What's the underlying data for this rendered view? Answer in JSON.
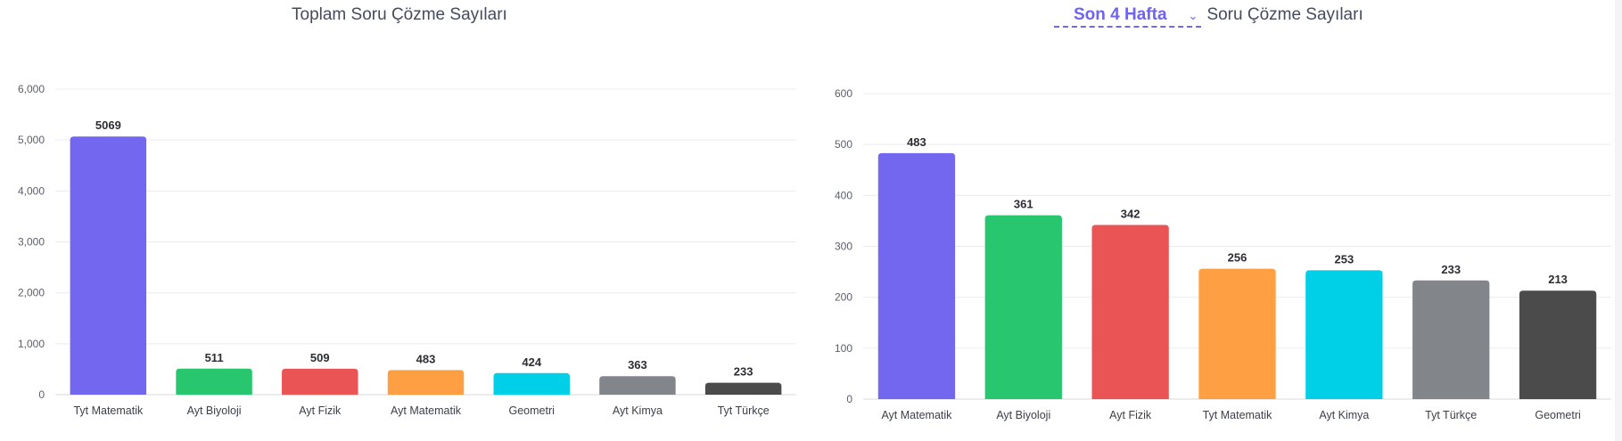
{
  "left_title": "Toplam Soru Çözme Sayıları",
  "right_selector": {
    "label": "Son 4 Hafta"
  },
  "right_title": "Soru Çözme Sayıları",
  "chart_data": [
    {
      "type": "bar",
      "title": "Toplam Soru Çözme Sayıları",
      "categories": [
        "Tyt Matematik",
        "Ayt Biyoloji",
        "Ayt Fizik",
        "Ayt Matematik",
        "Geometri",
        "Ayt Kimya",
        "Tyt Türkçe"
      ],
      "values": [
        5069,
        511,
        509,
        483,
        424,
        363,
        233
      ],
      "colors": [
        "#7367f0",
        "#28c76f",
        "#ea5455",
        "#ff9f43",
        "#00cfe8",
        "#82868b",
        "#4b4b4b"
      ],
      "ylim": [
        0,
        6000
      ],
      "yticks": [
        0,
        1000,
        2000,
        3000,
        4000,
        5000,
        6000
      ],
      "ytick_labels": [
        "0",
        "1,000",
        "2,000",
        "3,000",
        "4,000",
        "5,000",
        "6,000"
      ],
      "data_labels": true,
      "grid": true
    },
    {
      "type": "bar",
      "title": "Soru Çözme Sayıları",
      "categories": [
        "Ayt Matematik",
        "Ayt Biyoloji",
        "Ayt Fizik",
        "Tyt Matematik",
        "Ayt Kimya",
        "Tyt Türkçe",
        "Geometri"
      ],
      "values": [
        483,
        361,
        342,
        256,
        253,
        233,
        213
      ],
      "colors": [
        "#7367f0",
        "#28c76f",
        "#ea5455",
        "#ff9f43",
        "#00cfe8",
        "#82868b",
        "#4b4b4b"
      ],
      "ylim": [
        0,
        600
      ],
      "yticks": [
        0,
        100,
        200,
        300,
        400,
        500,
        600
      ],
      "ytick_labels": [
        "0",
        "100",
        "200",
        "300",
        "400",
        "500",
        "600"
      ],
      "data_labels": true,
      "grid": true
    }
  ]
}
